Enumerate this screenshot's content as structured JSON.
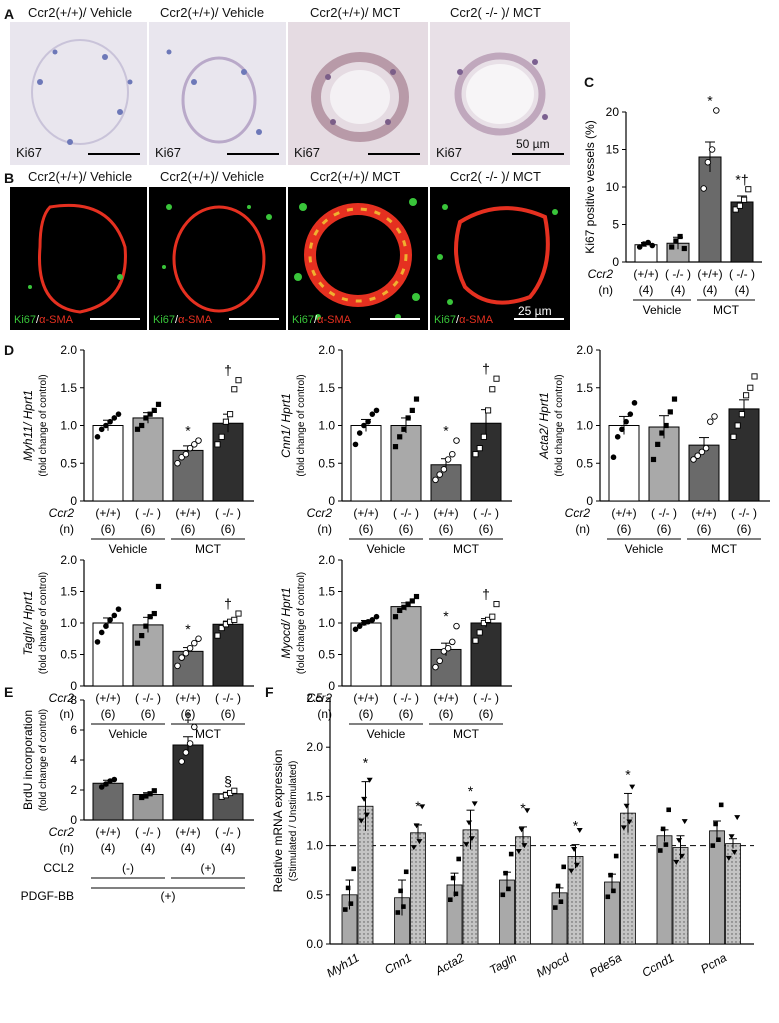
{
  "panelA": {
    "label": "A",
    "titles": [
      "Ccr2(+/+)/ Vehicle",
      "Ccr2(+/+)/ Vehicle",
      "Ccr2(+/+)/ MCT",
      "Ccr2( -/- )/ MCT"
    ],
    "stain": "Ki67",
    "scale_bar": "50 µm"
  },
  "panelB": {
    "label": "B",
    "titles": [
      "Ccr2(+/+)/ Vehicle",
      "Ccr2(+/+)/ Vehicle",
      "Ccr2(+/+)/ MCT",
      "Ccr2( -/- )/ MCT"
    ],
    "stain_green": "Ki67",
    "stain_sep": "/",
    "stain_red": "α-SMA",
    "scale_bar": "25 µm"
  },
  "panelC": {
    "label": "C"
  },
  "panelD": {
    "label": "D"
  },
  "panelE": {
    "label": "E"
  },
  "panelF": {
    "label": "F"
  },
  "colors": {
    "white": "#ffffff",
    "light": "#a9a9a9",
    "mid": "#6a6a6a",
    "dark": "#2f2f2f",
    "red": "#e53020",
    "green": "#39c53a"
  },
  "chart_data": [
    {
      "id": "C",
      "type": "bar",
      "ylabel": "Ki67 positive vessels (%)",
      "ylim": [
        0,
        20
      ],
      "yticks": [
        0,
        5,
        10,
        15,
        20
      ],
      "row_labels": [
        "Ccr2",
        "(n)"
      ],
      "genotype": [
        "(+/+)",
        "( -/- )",
        "(+/+)",
        "( -/- )"
      ],
      "n": [
        "(4)",
        "(4)",
        "(4)",
        "(4)"
      ],
      "groups": [
        "Vehicle",
        "MCT"
      ],
      "values": [
        2.3,
        2.5,
        14.0,
        8.0
      ],
      "errors": [
        0.3,
        0.8,
        2.0,
        0.8
      ],
      "annotations": [
        "",
        "",
        "*",
        "*†"
      ],
      "points": [
        [
          2.0,
          2.4,
          2.6,
          2.2
        ],
        [
          2.0,
          2.8,
          3.4,
          1.8
        ],
        [
          9.8,
          13.3,
          15.0,
          20.2
        ],
        [
          7.0,
          7.5,
          8.3,
          9.7
        ]
      ]
    },
    {
      "id": "D1",
      "type": "bar",
      "ylabel": "Myh11/ Hprt1",
      "ylabel2": "(fold change of control)",
      "ylim": [
        0,
        2.0
      ],
      "yticks": [
        "0",
        "0.5",
        "1.0",
        "1.5",
        "2.0"
      ],
      "row_labels": [
        "Ccr2",
        "(n)"
      ],
      "genotype": [
        "(+/+)",
        "( -/- )",
        "(+/+)",
        "( -/- )"
      ],
      "n": [
        "(6)",
        "(6)",
        "(6)",
        "(6)"
      ],
      "groups": [
        "Vehicle",
        "MCT"
      ],
      "values": [
        1.0,
        1.1,
        0.67,
        1.03
      ],
      "errors": [
        0.07,
        0.07,
        0.06,
        0.12
      ],
      "annotations": [
        "",
        "",
        "*",
        "†"
      ],
      "points": [
        [
          0.85,
          0.95,
          1.0,
          1.05,
          1.1,
          1.15
        ],
        [
          0.95,
          1.0,
          1.1,
          1.15,
          1.2,
          1.28
        ],
        [
          0.5,
          0.58,
          0.62,
          0.7,
          0.75,
          0.8
        ],
        [
          0.75,
          0.85,
          1.05,
          1.15,
          1.48,
          1.6
        ]
      ]
    },
    {
      "id": "D2",
      "type": "bar",
      "ylabel": "Cnn1/ Hprt1",
      "ylabel2": "(fold change of control)",
      "ylim": [
        0,
        2.0
      ],
      "yticks": [
        "0",
        "0.5",
        "1.0",
        "1.5",
        "2.0"
      ],
      "row_labels": [
        "Ccr2",
        "(n)"
      ],
      "genotype": [
        "(+/+)",
        "( -/- )",
        "(+/+)",
        "( -/- )"
      ],
      "n": [
        "(6)",
        "(6)",
        "(6)",
        "(6)"
      ],
      "groups": [
        "Vehicle",
        "MCT"
      ],
      "values": [
        1.0,
        1.0,
        0.48,
        1.03
      ],
      "errors": [
        0.08,
        0.1,
        0.08,
        0.18
      ],
      "annotations": [
        "",
        "",
        "*",
        "†"
      ],
      "points": [
        [
          0.75,
          0.9,
          1.0,
          1.05,
          1.15,
          1.2
        ],
        [
          0.72,
          0.85,
          0.95,
          1.1,
          1.2,
          1.35
        ],
        [
          0.28,
          0.35,
          0.42,
          0.55,
          0.62,
          0.8
        ],
        [
          0.62,
          0.7,
          0.85,
          1.2,
          1.48,
          1.62
        ]
      ]
    },
    {
      "id": "D3",
      "type": "bar",
      "ylabel": "Acta2/ Hprt1",
      "ylabel2": "(fold change of control)",
      "ylim": [
        0,
        2.0
      ],
      "yticks": [
        "0",
        "0.5",
        "1.0",
        "1.5",
        "2.0"
      ],
      "row_labels": [
        "Ccr2",
        "(n)"
      ],
      "genotype": [
        "(+/+)",
        "( -/- )",
        "(+/+)",
        "( -/- )"
      ],
      "n": [
        "(6)",
        "(6)",
        "(6)",
        "(6)"
      ],
      "groups": [
        "Vehicle",
        "MCT"
      ],
      "values": [
        1.0,
        0.98,
        0.74,
        1.22
      ],
      "errors": [
        0.12,
        0.15,
        0.1,
        0.12
      ],
      "annotations": [
        "",
        "",
        "",
        ""
      ],
      "points": [
        [
          0.58,
          0.85,
          0.95,
          1.05,
          1.15,
          1.3
        ],
        [
          0.55,
          0.75,
          0.9,
          1.0,
          1.18,
          1.35
        ],
        [
          0.55,
          0.6,
          0.65,
          0.7,
          1.05,
          1.12
        ],
        [
          0.85,
          1.0,
          1.15,
          1.4,
          1.5,
          1.65
        ]
      ]
    },
    {
      "id": "D4",
      "type": "bar",
      "ylabel": "Tagln/ Hprt1",
      "ylabel2": "(fold change of control)",
      "ylim": [
        0,
        2.0
      ],
      "yticks": [
        "0",
        "0.5",
        "1.0",
        "1.5",
        "2.0"
      ],
      "row_labels": [
        "Ccr2",
        "(n)"
      ],
      "genotype": [
        "(+/+)",
        "( -/- )",
        "(+/+)",
        "( -/- )"
      ],
      "n": [
        "(6)",
        "(6)",
        "(6)",
        "(6)"
      ],
      "groups": [
        "Vehicle",
        "MCT"
      ],
      "values": [
        1.0,
        0.97,
        0.55,
        0.98
      ],
      "errors": [
        0.08,
        0.12,
        0.06,
        0.05
      ],
      "annotations": [
        "",
        "",
        "*",
        "†"
      ],
      "points": [
        [
          0.7,
          0.85,
          0.95,
          1.05,
          1.12,
          1.22
        ],
        [
          0.68,
          0.8,
          0.95,
          1.1,
          1.15,
          1.58
        ],
        [
          0.32,
          0.45,
          0.52,
          0.6,
          0.68,
          0.75
        ],
        [
          0.8,
          0.92,
          0.98,
          1.02,
          1.05,
          1.15
        ]
      ]
    },
    {
      "id": "D5",
      "type": "bar",
      "ylabel": "Myocd/ Hprt1",
      "ylabel2": "(fold change of control)",
      "ylim": [
        0,
        2.0
      ],
      "yticks": [
        "0",
        "0.5",
        "1.0",
        "1.5",
        "2.0"
      ],
      "row_labels": [
        "Ccr2",
        "(n)"
      ],
      "genotype": [
        "(+/+)",
        "( -/- )",
        "(+/+)",
        "( -/- )"
      ],
      "n": [
        "(6)",
        "(6)",
        "(6)",
        "(6)"
      ],
      "groups": [
        "Vehicle",
        "MCT"
      ],
      "values": [
        1.0,
        1.26,
        0.58,
        1.0
      ],
      "errors": [
        0.04,
        0.06,
        0.1,
        0.07
      ],
      "annotations": [
        "",
        "",
        "*",
        "†"
      ],
      "points": [
        [
          0.9,
          0.95,
          1.0,
          1.02,
          1.05,
          1.1
        ],
        [
          1.1,
          1.2,
          1.25,
          1.3,
          1.35,
          1.42
        ],
        [
          0.3,
          0.4,
          0.55,
          0.6,
          0.7,
          0.95
        ],
        [
          0.72,
          0.85,
          1.0,
          1.05,
          1.1,
          1.3
        ]
      ]
    },
    {
      "id": "E",
      "type": "bar",
      "ylabel": "BrdU incorporation",
      "ylabel2": "(fold change of control)",
      "ylim": [
        0,
        8
      ],
      "yticks": [
        0,
        2,
        4,
        6,
        8
      ],
      "row_labels": [
        "Ccr2",
        "(n)",
        "CCL2",
        "PDGF-BB"
      ],
      "genotype": [
        "(+/+)",
        "( -/- )",
        "(+/+)",
        "( -/- )"
      ],
      "n": [
        "(4)",
        "(4)",
        "(4)",
        "(4)"
      ],
      "ccl2": [
        "(-)",
        "(+)"
      ],
      "pdgf": "(+)",
      "values": [
        2.45,
        1.7,
        5.0,
        1.75
      ],
      "errors": [
        0.2,
        0.12,
        0.55,
        0.1
      ],
      "annotations": [
        "",
        "",
        "‡",
        "§"
      ],
      "points": [
        [
          2.2,
          2.4,
          2.6,
          2.7
        ],
        [
          1.5,
          1.6,
          1.75,
          1.95
        ],
        [
          3.9,
          4.5,
          5.1,
          6.2
        ],
        [
          1.55,
          1.65,
          1.8,
          1.95
        ]
      ]
    },
    {
      "id": "F",
      "type": "bar",
      "ylabel": "Relative mRNA expression",
      "ylabel2": "(Stimulated / Unstimulated)",
      "ylim": [
        0,
        2.5
      ],
      "yticks": [
        "0.0",
        "0.5",
        "1.0",
        "1.5",
        "2.0",
        "2.5"
      ],
      "reference_line": 1.0,
      "categories": [
        "Myh11",
        "Cnn1",
        "Acta2",
        "Tagln",
        "Myocd",
        "Pde5a",
        "Ccnd1",
        "Pcna"
      ],
      "series": [
        {
          "values": [
            0.5,
            0.47,
            0.6,
            0.65,
            0.52,
            0.63,
            1.1,
            1.15
          ],
          "errors": [
            0.15,
            0.18,
            0.12,
            0.08,
            0.05,
            0.08,
            0.06,
            0.1
          ]
        },
        {
          "values": [
            1.4,
            1.13,
            1.16,
            1.09,
            0.89,
            1.33,
            0.98,
            1.02
          ],
          "errors": [
            0.25,
            0.08,
            0.2,
            0.1,
            0.12,
            0.2,
            0.12,
            0.05
          ]
        }
      ],
      "annotations": [
        "*",
        "*",
        "*",
        "*",
        "*",
        "*",
        "",
        ""
      ]
    }
  ]
}
